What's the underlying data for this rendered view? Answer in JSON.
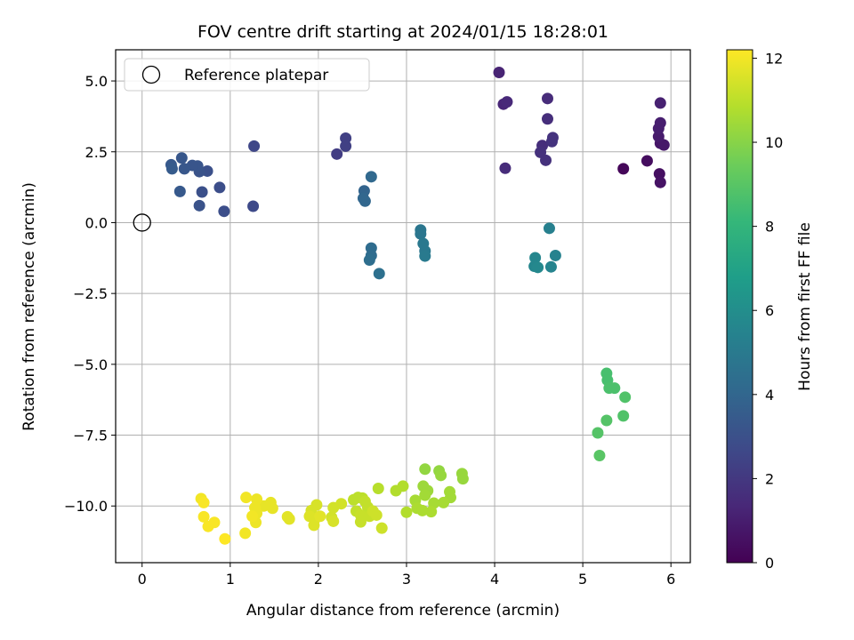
{
  "chart_data": {
    "type": "scatter",
    "title": "FOV centre drift starting at 2024/01/15 18:28:01",
    "xlabel": "Angular distance from reference (arcmin)",
    "ylabel": "Rotation from reference (arcmin)",
    "xlim": [
      -0.3,
      6.22
    ],
    "ylim": [
      -12.0,
      6.1
    ],
    "xticks": [
      0,
      1,
      2,
      3,
      4,
      5,
      6
    ],
    "xtick_labels": [
      "0",
      "1",
      "2",
      "3",
      "4",
      "5",
      "6"
    ],
    "yticks": [
      5.0,
      2.5,
      0.0,
      -2.5,
      -5.0,
      -7.5,
      -10.0
    ],
    "ytick_labels": [
      "5.0",
      "2.5",
      "0.0",
      "−2.5",
      "−5.0",
      "−7.5",
      "−10.0"
    ],
    "grid": true,
    "legend": {
      "placement": "top-left",
      "entries": [
        "Reference platepar"
      ]
    },
    "reference_point": {
      "x": 0,
      "y": 0,
      "marker": "open-circle",
      "label": "Reference platepar"
    },
    "colorbar": {
      "label": "Hours from first FF file",
      "range": [
        0,
        12.2
      ],
      "ticks": [
        0,
        2,
        4,
        6,
        8,
        10,
        12
      ],
      "tick_labels": [
        "0",
        "2",
        "4",
        "6",
        "8",
        "10",
        "12"
      ],
      "colormap": "viridis"
    },
    "points": [
      {
        "x": 5.46,
        "y": 1.9,
        "c": 0.2
      },
      {
        "x": 5.73,
        "y": 2.18,
        "c": 0.4
      },
      {
        "x": 5.87,
        "y": 1.72,
        "c": 0.5
      },
      {
        "x": 5.88,
        "y": 1.42,
        "c": 0.6
      },
      {
        "x": 5.88,
        "y": 2.8,
        "c": 0.7
      },
      {
        "x": 5.92,
        "y": 2.74,
        "c": 0.8
      },
      {
        "x": 5.86,
        "y": 3.04,
        "c": 0.9
      },
      {
        "x": 5.86,
        "y": 3.32,
        "c": 1.0
      },
      {
        "x": 5.88,
        "y": 3.52,
        "c": 1.0
      },
      {
        "x": 5.88,
        "y": 4.22,
        "c": 1.1
      },
      {
        "x": 4.05,
        "y": 5.3,
        "c": 1.2
      },
      {
        "x": 4.1,
        "y": 4.18,
        "c": 1.3
      },
      {
        "x": 4.14,
        "y": 4.26,
        "c": 1.4
      },
      {
        "x": 4.12,
        "y": 1.92,
        "c": 1.5
      },
      {
        "x": 4.6,
        "y": 4.38,
        "c": 1.5
      },
      {
        "x": 4.6,
        "y": 3.66,
        "c": 1.6
      },
      {
        "x": 4.54,
        "y": 2.72,
        "c": 1.6
      },
      {
        "x": 4.52,
        "y": 2.48,
        "c": 1.7
      },
      {
        "x": 4.58,
        "y": 2.2,
        "c": 1.7
      },
      {
        "x": 4.65,
        "y": 2.86,
        "c": 1.8
      },
      {
        "x": 4.66,
        "y": 3.0,
        "c": 1.8
      },
      {
        "x": 2.21,
        "y": 2.42,
        "c": 2.2
      },
      {
        "x": 2.31,
        "y": 2.7,
        "c": 2.3
      },
      {
        "x": 2.31,
        "y": 2.98,
        "c": 2.3
      },
      {
        "x": 1.27,
        "y": 2.7,
        "c": 2.6
      },
      {
        "x": 1.26,
        "y": 0.58,
        "c": 2.7
      },
      {
        "x": 0.93,
        "y": 0.4,
        "c": 2.9
      },
      {
        "x": 0.88,
        "y": 1.24,
        "c": 2.9
      },
      {
        "x": 0.74,
        "y": 1.82,
        "c": 3.0
      },
      {
        "x": 0.68,
        "y": 1.08,
        "c": 3.0
      },
      {
        "x": 0.65,
        "y": 0.6,
        "c": 3.1
      },
      {
        "x": 0.65,
        "y": 1.8,
        "c": 3.1
      },
      {
        "x": 0.63,
        "y": 2.0,
        "c": 3.2
      },
      {
        "x": 0.57,
        "y": 2.02,
        "c": 3.2
      },
      {
        "x": 0.48,
        "y": 1.9,
        "c": 3.3
      },
      {
        "x": 0.45,
        "y": 2.28,
        "c": 3.3
      },
      {
        "x": 0.43,
        "y": 1.1,
        "c": 3.4
      },
      {
        "x": 0.33,
        "y": 2.04,
        "c": 3.4
      },
      {
        "x": 0.34,
        "y": 1.9,
        "c": 3.5
      },
      {
        "x": 2.52,
        "y": 1.12,
        "c": 3.9
      },
      {
        "x": 2.51,
        "y": 0.86,
        "c": 4.0
      },
      {
        "x": 2.53,
        "y": 0.76,
        "c": 4.0
      },
      {
        "x": 2.6,
        "y": 1.62,
        "c": 4.1
      },
      {
        "x": 2.6,
        "y": -0.9,
        "c": 4.3
      },
      {
        "x": 2.6,
        "y": -1.16,
        "c": 4.3
      },
      {
        "x": 2.58,
        "y": -1.32,
        "c": 4.4
      },
      {
        "x": 2.69,
        "y": -1.8,
        "c": 4.5
      },
      {
        "x": 3.16,
        "y": -0.26,
        "c": 4.8
      },
      {
        "x": 3.16,
        "y": -0.4,
        "c": 4.8
      },
      {
        "x": 3.19,
        "y": -0.74,
        "c": 4.9
      },
      {
        "x": 3.21,
        "y": -1.0,
        "c": 4.9
      },
      {
        "x": 3.21,
        "y": -1.18,
        "c": 5.0
      },
      {
        "x": 4.62,
        "y": -0.2,
        "c": 5.3
      },
      {
        "x": 4.69,
        "y": -1.16,
        "c": 5.4
      },
      {
        "x": 4.64,
        "y": -1.56,
        "c": 5.5
      },
      {
        "x": 4.46,
        "y": -1.24,
        "c": 5.6
      },
      {
        "x": 4.45,
        "y": -1.54,
        "c": 5.6
      },
      {
        "x": 4.49,
        "y": -1.58,
        "c": 5.7
      },
      {
        "x": 5.27,
        "y": -5.32,
        "c": 8.6
      },
      {
        "x": 5.28,
        "y": -5.56,
        "c": 8.6
      },
      {
        "x": 5.3,
        "y": -5.84,
        "c": 8.7
      },
      {
        "x": 5.36,
        "y": -5.84,
        "c": 8.7
      },
      {
        "x": 5.48,
        "y": -6.16,
        "c": 8.8
      },
      {
        "x": 5.46,
        "y": -6.82,
        "c": 8.8
      },
      {
        "x": 5.27,
        "y": -6.98,
        "c": 8.9
      },
      {
        "x": 5.17,
        "y": -7.42,
        "c": 8.9
      },
      {
        "x": 5.19,
        "y": -8.22,
        "c": 9.0
      },
      {
        "x": 3.21,
        "y": -8.7,
        "c": 10.2
      },
      {
        "x": 3.37,
        "y": -8.76,
        "c": 10.2
      },
      {
        "x": 3.39,
        "y": -8.92,
        "c": 10.3
      },
      {
        "x": 3.63,
        "y": -8.86,
        "c": 10.3
      },
      {
        "x": 3.64,
        "y": -9.04,
        "c": 10.3
      },
      {
        "x": 3.19,
        "y": -9.3,
        "c": 10.4
      },
      {
        "x": 3.24,
        "y": -9.46,
        "c": 10.4
      },
      {
        "x": 3.21,
        "y": -9.62,
        "c": 10.5
      },
      {
        "x": 3.49,
        "y": -9.5,
        "c": 10.5
      },
      {
        "x": 3.5,
        "y": -9.7,
        "c": 10.5
      },
      {
        "x": 3.42,
        "y": -9.88,
        "c": 10.6
      },
      {
        "x": 3.31,
        "y": -9.9,
        "c": 10.6
      },
      {
        "x": 3.1,
        "y": -9.8,
        "c": 10.6
      },
      {
        "x": 3.12,
        "y": -10.08,
        "c": 10.7
      },
      {
        "x": 3.28,
        "y": -10.2,
        "c": 10.7
      },
      {
        "x": 3.18,
        "y": -10.16,
        "c": 10.7
      },
      {
        "x": 3.0,
        "y": -10.22,
        "c": 10.8
      },
      {
        "x": 2.96,
        "y": -9.3,
        "c": 10.8
      },
      {
        "x": 2.88,
        "y": -9.46,
        "c": 10.8
      },
      {
        "x": 2.68,
        "y": -9.38,
        "c": 10.9
      },
      {
        "x": 2.5,
        "y": -9.72,
        "c": 11.0
      },
      {
        "x": 2.4,
        "y": -9.78,
        "c": 11.0
      },
      {
        "x": 2.45,
        "y": -9.7,
        "c": 11.0
      },
      {
        "x": 2.53,
        "y": -9.84,
        "c": 11.1
      },
      {
        "x": 2.56,
        "y": -10.04,
        "c": 11.1
      },
      {
        "x": 2.43,
        "y": -10.18,
        "c": 11.1
      },
      {
        "x": 2.48,
        "y": -10.32,
        "c": 11.2
      },
      {
        "x": 2.48,
        "y": -10.56,
        "c": 11.2
      },
      {
        "x": 2.58,
        "y": -10.36,
        "c": 11.2
      },
      {
        "x": 2.62,
        "y": -10.18,
        "c": 11.3
      },
      {
        "x": 2.66,
        "y": -10.32,
        "c": 11.3
      },
      {
        "x": 2.72,
        "y": -10.78,
        "c": 11.3
      },
      {
        "x": 2.26,
        "y": -9.92,
        "c": 11.4
      },
      {
        "x": 2.17,
        "y": -10.06,
        "c": 11.4
      },
      {
        "x": 2.15,
        "y": -10.4,
        "c": 11.4
      },
      {
        "x": 2.17,
        "y": -10.54,
        "c": 11.5
      },
      {
        "x": 1.98,
        "y": -9.96,
        "c": 11.5
      },
      {
        "x": 1.92,
        "y": -10.16,
        "c": 11.5
      },
      {
        "x": 1.9,
        "y": -10.36,
        "c": 11.6
      },
      {
        "x": 1.96,
        "y": -10.46,
        "c": 11.6
      },
      {
        "x": 1.95,
        "y": -10.68,
        "c": 11.6
      },
      {
        "x": 2.02,
        "y": -10.36,
        "c": 11.7
      },
      {
        "x": 1.65,
        "y": -10.38,
        "c": 11.7
      },
      {
        "x": 1.67,
        "y": -10.46,
        "c": 11.7
      },
      {
        "x": 1.46,
        "y": -9.88,
        "c": 11.8
      },
      {
        "x": 1.48,
        "y": -10.08,
        "c": 11.8
      },
      {
        "x": 1.38,
        "y": -10.0,
        "c": 11.8
      },
      {
        "x": 1.3,
        "y": -9.76,
        "c": 11.9
      },
      {
        "x": 1.28,
        "y": -10.06,
        "c": 11.9
      },
      {
        "x": 1.3,
        "y": -10.26,
        "c": 11.9
      },
      {
        "x": 1.29,
        "y": -10.58,
        "c": 11.9
      },
      {
        "x": 1.25,
        "y": -10.36,
        "c": 12.0
      },
      {
        "x": 1.18,
        "y": -9.7,
        "c": 12.0
      },
      {
        "x": 1.17,
        "y": -10.96,
        "c": 12.0
      },
      {
        "x": 0.67,
        "y": -9.74,
        "c": 12.0
      },
      {
        "x": 0.7,
        "y": -9.88,
        "c": 12.1
      },
      {
        "x": 0.7,
        "y": -10.38,
        "c": 12.1
      },
      {
        "x": 0.82,
        "y": -10.58,
        "c": 12.1
      },
      {
        "x": 0.75,
        "y": -10.72,
        "c": 12.1
      },
      {
        "x": 0.94,
        "y": -11.16,
        "c": 12.2
      }
    ]
  }
}
